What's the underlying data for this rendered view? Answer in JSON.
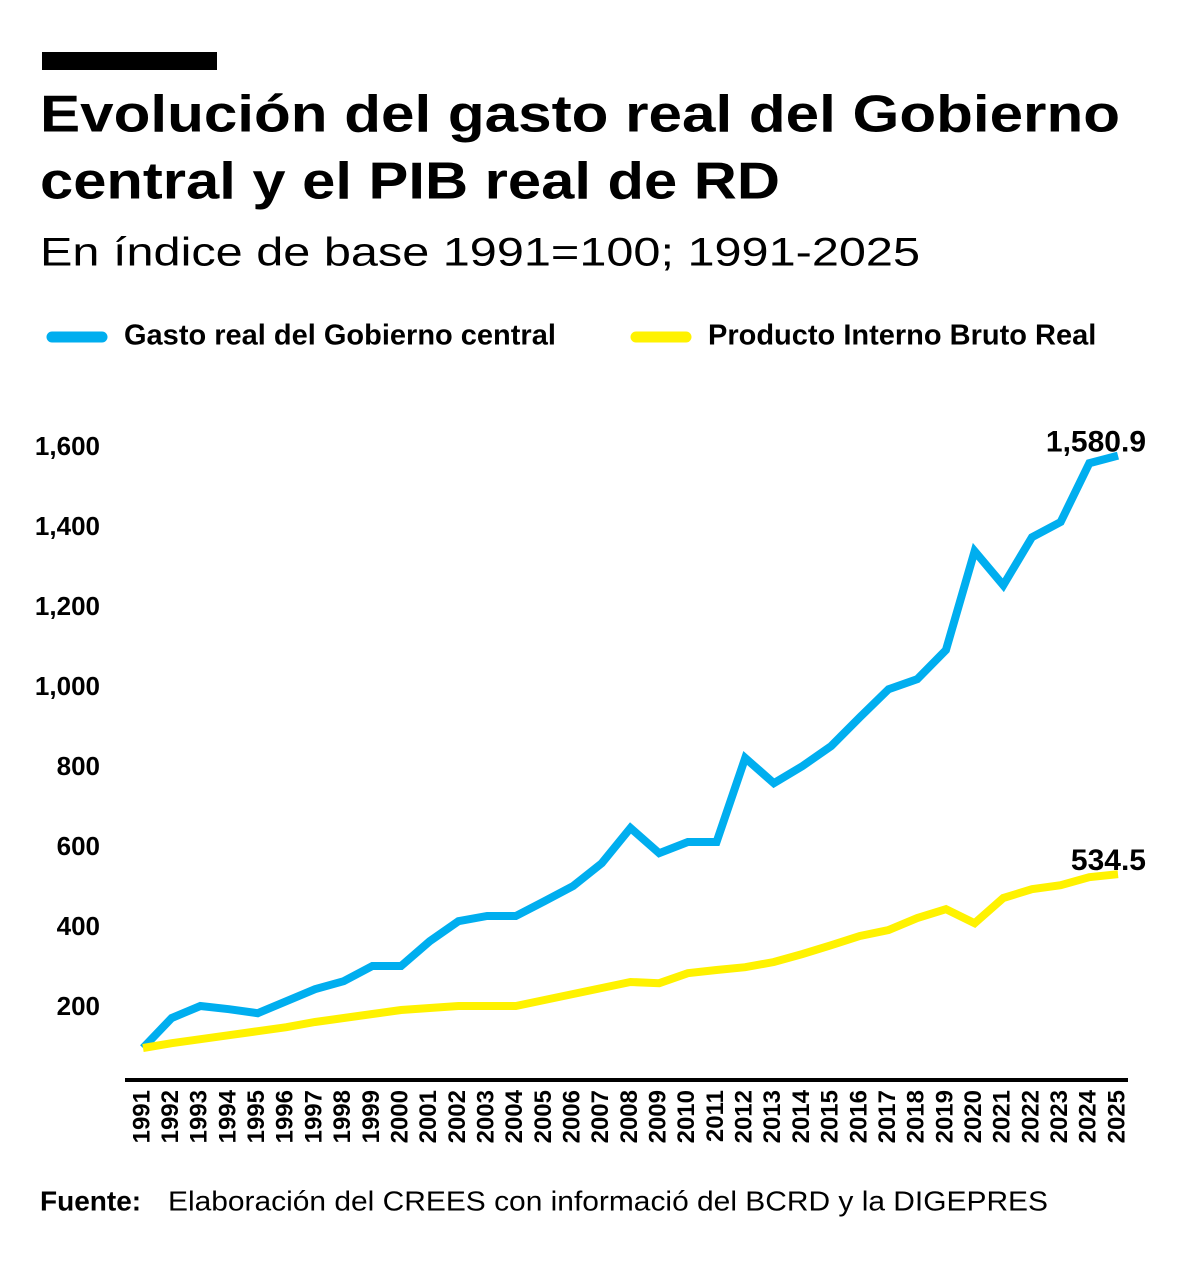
{
  "chart_data": {
    "type": "line",
    "title": [
      "Evolución del gasto real del Gobierno",
      "central y el PIB real de RD"
    ],
    "subtitle": "En índice de base 1991=100; 1991-2025",
    "source_label": "Fuente:",
    "source": "Elaboración del CREES con informació del BCRD y la DIGEPRES",
    "categories": [
      "1991",
      "1992",
      "1993",
      "1994",
      "1995",
      "1996",
      "1997",
      "1998",
      "1999",
      "2000",
      "2001",
      "2002",
      "2003",
      "2004",
      "2005",
      "2006",
      "2007",
      "2008",
      "2009",
      "2010",
      "2011",
      "2012",
      "2013",
      "2014",
      "2015",
      "2016",
      "2017",
      "2018",
      "2019",
      "2020",
      "2021",
      "2022",
      "2023",
      "2024",
      "2025"
    ],
    "series": [
      {
        "name": "Gasto real del Gobierno central",
        "color": "#00aeef",
        "values": [
          100,
          175,
          205,
          197,
          187,
          217,
          247,
          267,
          305,
          305,
          367,
          417,
          430,
          430,
          467,
          505,
          562,
          650,
          587,
          615,
          615,
          825,
          762,
          805,
          855,
          927,
          997,
          1022,
          1095,
          1342,
          1257,
          1377,
          1415,
          1562,
          1580.9
        ],
        "value_labels": [
          null,
          null,
          null,
          null,
          null,
          null,
          null,
          null,
          null,
          null,
          null,
          null,
          null,
          null,
          null,
          null,
          null,
          null,
          null,
          null,
          null,
          null,
          null,
          null,
          null,
          null,
          null,
          null,
          null,
          null,
          null,
          null,
          null,
          null,
          "1,580.9"
        ]
      },
      {
        "name": "Producto Interno Bruto Real",
        "color": "#fff200",
        "values": [
          100,
          112,
          122,
          132,
          142,
          152,
          165,
          175,
          185,
          195,
          200,
          205,
          205,
          205,
          220,
          235,
          250,
          265,
          262,
          287,
          295,
          302,
          315,
          335,
          357,
          380,
          395,
          425,
          447,
          412,
          475,
          497,
          507,
          527,
          534.5
        ],
        "value_labels": [
          null,
          null,
          null,
          null,
          null,
          null,
          null,
          null,
          null,
          null,
          null,
          null,
          null,
          null,
          null,
          null,
          null,
          null,
          null,
          null,
          null,
          null,
          null,
          null,
          null,
          null,
          null,
          null,
          null,
          null,
          null,
          null,
          null,
          null,
          "534.5"
        ]
      }
    ],
    "ylim": [
      20,
      1690
    ],
    "yticks": [
      200,
      400,
      600,
      800,
      {
        "value": 1000,
        "label": "1,000"
      },
      {
        "value": 1200,
        "label": "1,200"
      },
      {
        "value": 1400,
        "label": "1,400"
      },
      {
        "value": 1600,
        "label": "1,600"
      }
    ],
    "grid": false
  }
}
